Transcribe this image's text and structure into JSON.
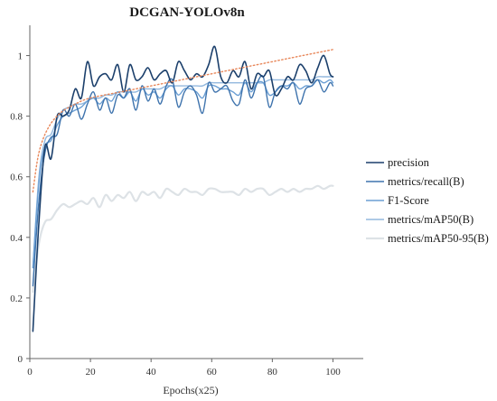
{
  "chart_data": {
    "type": "line",
    "title": "DCGAN-YOLOv8n",
    "xlabel": "Epochs(x25)",
    "ylabel": "",
    "xlim": [
      0,
      110
    ],
    "ylim": [
      0,
      1.1
    ],
    "xticks": [
      0,
      20,
      40,
      60,
      80,
      100
    ],
    "yticks": [
      0,
      0.2,
      0.4,
      0.6,
      0.8,
      1
    ],
    "xtick_labels": [
      "0",
      "20",
      "40",
      "60",
      "80",
      "100"
    ],
    "ytick_labels": [
      "0",
      "0.2",
      "0.4",
      "0.6",
      "0.8",
      "1"
    ],
    "grid": false,
    "legend_position": "right",
    "x": [
      1,
      3,
      5,
      7,
      9,
      11,
      13,
      15,
      17,
      19,
      21,
      23,
      25,
      27,
      29,
      31,
      33,
      35,
      37,
      39,
      41,
      43,
      45,
      47,
      49,
      51,
      53,
      55,
      57,
      59,
      61,
      63,
      65,
      67,
      69,
      71,
      73,
      75,
      77,
      79,
      81,
      83,
      85,
      87,
      89,
      91,
      93,
      95,
      97,
      99,
      100
    ],
    "series": [
      {
        "name": "precision",
        "color": "#1b3f6b",
        "width": 1.6,
        "values": [
          0.09,
          0.45,
          0.7,
          0.66,
          0.8,
          0.8,
          0.82,
          0.89,
          0.86,
          0.98,
          0.9,
          0.93,
          0.94,
          0.92,
          0.97,
          0.88,
          0.97,
          0.92,
          0.93,
          0.96,
          0.92,
          0.94,
          0.95,
          0.91,
          0.98,
          0.95,
          0.92,
          0.94,
          0.93,
          0.97,
          1.03,
          0.93,
          0.91,
          0.95,
          0.93,
          0.98,
          0.89,
          0.94,
          0.93,
          0.95,
          0.87,
          0.89,
          0.93,
          0.92,
          0.97,
          0.95,
          0.91,
          0.96,
          1.0,
          0.94,
          0.93
        ]
      },
      {
        "name": "metrics/recall(B)",
        "color": "#3e73ad",
        "width": 1.4,
        "values": [
          0.24,
          0.52,
          0.68,
          0.73,
          0.74,
          0.82,
          0.8,
          0.84,
          0.79,
          0.84,
          0.88,
          0.82,
          0.86,
          0.81,
          0.87,
          0.86,
          0.89,
          0.82,
          0.9,
          0.85,
          0.89,
          0.84,
          0.9,
          0.92,
          0.83,
          0.88,
          0.9,
          0.87,
          0.81,
          0.91,
          0.88,
          0.89,
          0.9,
          0.85,
          0.84,
          0.92,
          0.86,
          0.91,
          0.93,
          0.83,
          0.88,
          0.9,
          0.89,
          0.91,
          0.84,
          0.89,
          0.9,
          0.92,
          0.88,
          0.91,
          0.9
        ]
      },
      {
        "name": "F1-Score",
        "color": "#6b9fd4",
        "width": 1.4,
        "values": [
          0.3,
          0.58,
          0.7,
          0.72,
          0.77,
          0.8,
          0.81,
          0.82,
          0.83,
          0.85,
          0.86,
          0.84,
          0.86,
          0.85,
          0.88,
          0.86,
          0.88,
          0.85,
          0.89,
          0.87,
          0.88,
          0.86,
          0.89,
          0.9,
          0.87,
          0.89,
          0.89,
          0.88,
          0.86,
          0.9,
          0.9,
          0.89,
          0.89,
          0.88,
          0.87,
          0.91,
          0.88,
          0.91,
          0.91,
          0.87,
          0.88,
          0.9,
          0.9,
          0.91,
          0.89,
          0.9,
          0.9,
          0.92,
          0.91,
          0.92,
          0.91
        ]
      },
      {
        "name": "metrics/mAP50(B)",
        "color": "#93b8de",
        "width": 1.4,
        "values": [
          0.3,
          0.6,
          0.72,
          0.74,
          0.79,
          0.82,
          0.83,
          0.84,
          0.84,
          0.85,
          0.86,
          0.86,
          0.87,
          0.87,
          0.88,
          0.88,
          0.88,
          0.88,
          0.89,
          0.89,
          0.89,
          0.89,
          0.9,
          0.9,
          0.9,
          0.9,
          0.9,
          0.9,
          0.9,
          0.91,
          0.91,
          0.91,
          0.91,
          0.91,
          0.91,
          0.91,
          0.91,
          0.91,
          0.91,
          0.92,
          0.92,
          0.92,
          0.92,
          0.92,
          0.92,
          0.92,
          0.92,
          0.93,
          0.93,
          0.93,
          0.93
        ]
      },
      {
        "name": "metrics/mAP50-95(B)",
        "color": "#dde2e6",
        "width": 2.2,
        "values": [
          0.22,
          0.38,
          0.45,
          0.46,
          0.49,
          0.51,
          0.5,
          0.51,
          0.52,
          0.51,
          0.53,
          0.5,
          0.54,
          0.52,
          0.54,
          0.53,
          0.55,
          0.52,
          0.55,
          0.54,
          0.55,
          0.53,
          0.56,
          0.55,
          0.54,
          0.56,
          0.55,
          0.55,
          0.54,
          0.56,
          0.56,
          0.55,
          0.55,
          0.55,
          0.54,
          0.56,
          0.55,
          0.56,
          0.56,
          0.54,
          0.55,
          0.56,
          0.55,
          0.56,
          0.55,
          0.56,
          0.56,
          0.57,
          0.56,
          0.57,
          0.57
        ]
      }
    ],
    "trendline": {
      "color": "#e8875a",
      "x": [
        1,
        3,
        6,
        10,
        15,
        20,
        30,
        40,
        50,
        60,
        70,
        80,
        90,
        100
      ],
      "values": [
        0.55,
        0.68,
        0.76,
        0.81,
        0.84,
        0.86,
        0.88,
        0.9,
        0.92,
        0.94,
        0.96,
        0.98,
        1.0,
        1.02
      ]
    }
  }
}
